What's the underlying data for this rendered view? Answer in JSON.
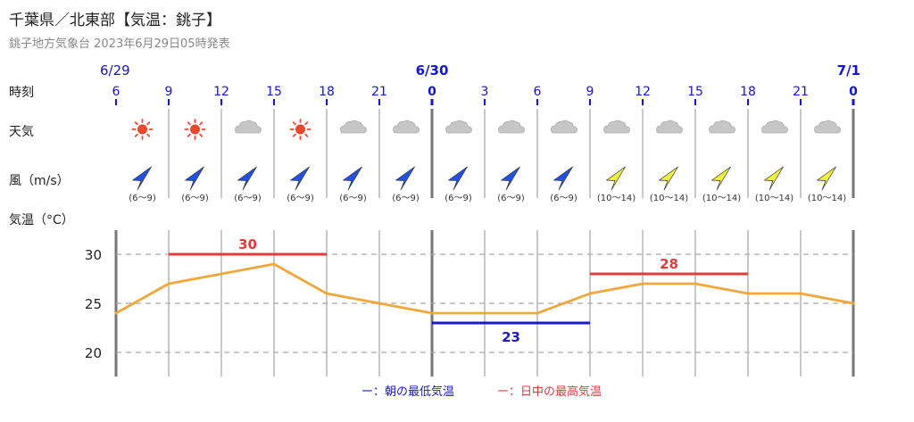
{
  "header": {
    "title": "千葉県／北東部【気温：銚子】",
    "subtitle": "銚子地方気象台 2023年6月29日05時発表"
  },
  "rows": {
    "time_label": "時刻",
    "weather_label": "天気",
    "wind_label": "風（m/s）",
    "temp_label": "気温（°C）"
  },
  "dates": [
    "6/29",
    "6/30",
    "7/1"
  ],
  "hours": [
    "6",
    "9",
    "12",
    "15",
    "18",
    "21",
    "0",
    "3",
    "6",
    "9",
    "12",
    "15",
    "18",
    "21",
    "0"
  ],
  "weather": [
    "sunny",
    "sunny",
    "cloudy",
    "sunny",
    "cloudy",
    "cloudy",
    "cloudy",
    "cloudy",
    "cloudy",
    "cloudy",
    "cloudy",
    "cloudy",
    "cloudy",
    "cloudy"
  ],
  "wind": [
    {
      "range": "(6〜9)",
      "level": "moderate"
    },
    {
      "range": "(6〜9)",
      "level": "moderate"
    },
    {
      "range": "(6〜9)",
      "level": "moderate"
    },
    {
      "range": "(6〜9)",
      "level": "moderate"
    },
    {
      "range": "(6〜9)",
      "level": "moderate"
    },
    {
      "range": "(6〜9)",
      "level": "moderate"
    },
    {
      "range": "(6〜9)",
      "level": "moderate"
    },
    {
      "range": "(6〜9)",
      "level": "moderate"
    },
    {
      "range": "(6〜9)",
      "level": "moderate"
    },
    {
      "range": "(10〜14)",
      "level": "strong"
    },
    {
      "range": "(10〜14)",
      "level": "strong"
    },
    {
      "range": "(10〜14)",
      "level": "strong"
    },
    {
      "range": "(10〜14)",
      "level": "strong"
    },
    {
      "range": "(10〜14)",
      "level": "strong"
    }
  ],
  "colors": {
    "date_blue": "#1414d2",
    "line_orange": "#f0a83c",
    "max_red": "#e03c3c",
    "min_blue": "#1a1ac8",
    "sun": "#e8482c",
    "cloud": "#c6c6c6",
    "wind_moderate": "#2250e0",
    "wind_strong": "#f0f040"
  },
  "legend": {
    "min_label": "ー：朝の最低気温",
    "max_label": "ー：日中の最高気温"
  },
  "chart_data": {
    "type": "line",
    "x": [
      "6/29 6",
      "9",
      "12",
      "15",
      "18",
      "21",
      "6/30 0",
      "3",
      "6",
      "9",
      "12",
      "15",
      "18",
      "21",
      "7/1 0"
    ],
    "series": [
      {
        "values": [
          24,
          27,
          28,
          29,
          26,
          25,
          24,
          24,
          24,
          26,
          27,
          27,
          26,
          26,
          25
        ]
      }
    ],
    "yticks": [
      20,
      25,
      30
    ],
    "ylim": [
      17.5,
      32.5
    ],
    "ylabel": "気温（°C）",
    "grid": true,
    "max_temps": [
      {
        "value": 30,
        "label": "30",
        "from_index": 1,
        "to_index": 4
      },
      {
        "value": 28,
        "label": "28",
        "from_index": 9,
        "to_index": 12
      }
    ],
    "min_temps": [
      {
        "value": 23,
        "label": "23",
        "from_index": 6,
        "to_index": 9
      }
    ]
  }
}
